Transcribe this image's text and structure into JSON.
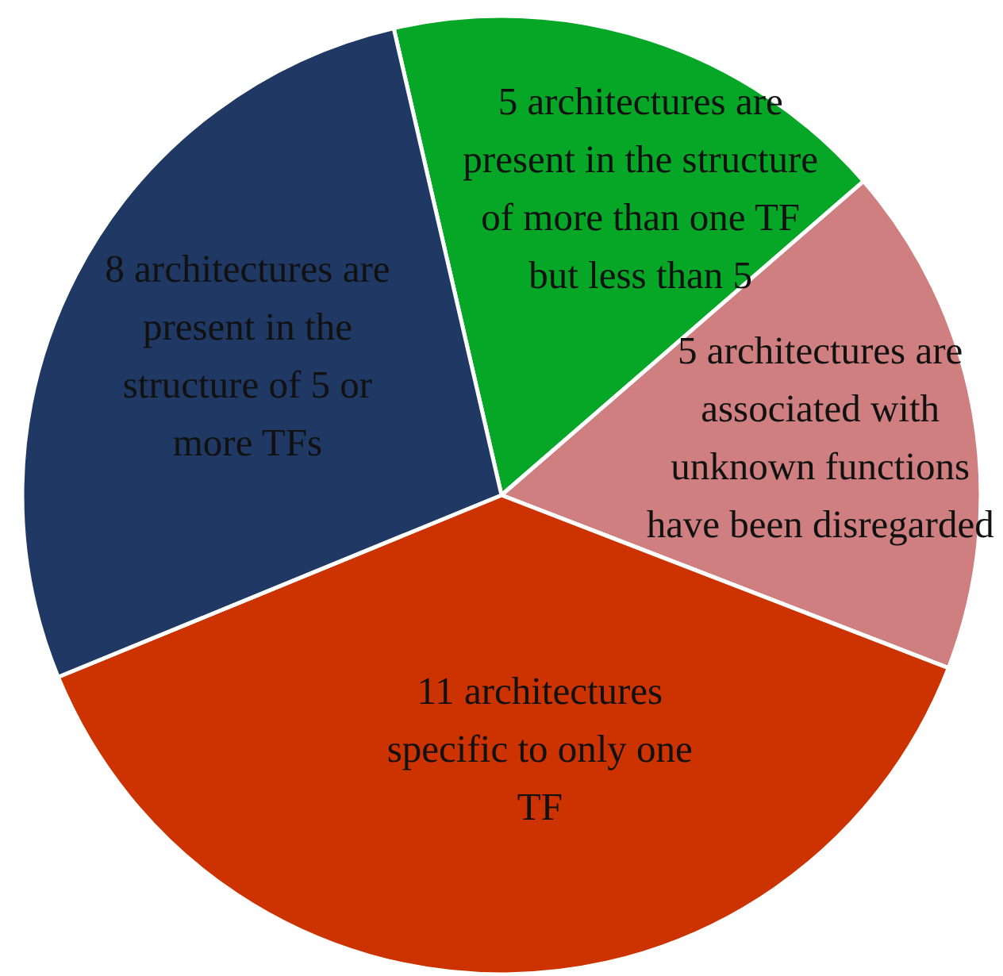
{
  "chart_data": {
    "type": "pie",
    "categories": [
      "5 architectures are present in the structure of more than one TF but less than 5",
      "5 architectures are associated with unknown functions have been disregarded",
      "11 architectures specific to only one TF",
      "8 architectures are present in the structure of 5 or more TFs"
    ],
    "values": [
      5,
      5,
      11,
      8
    ],
    "colors": [
      "#06a626",
      "#cf7f7f",
      "#cc3300",
      "#1f3864"
    ]
  }
}
